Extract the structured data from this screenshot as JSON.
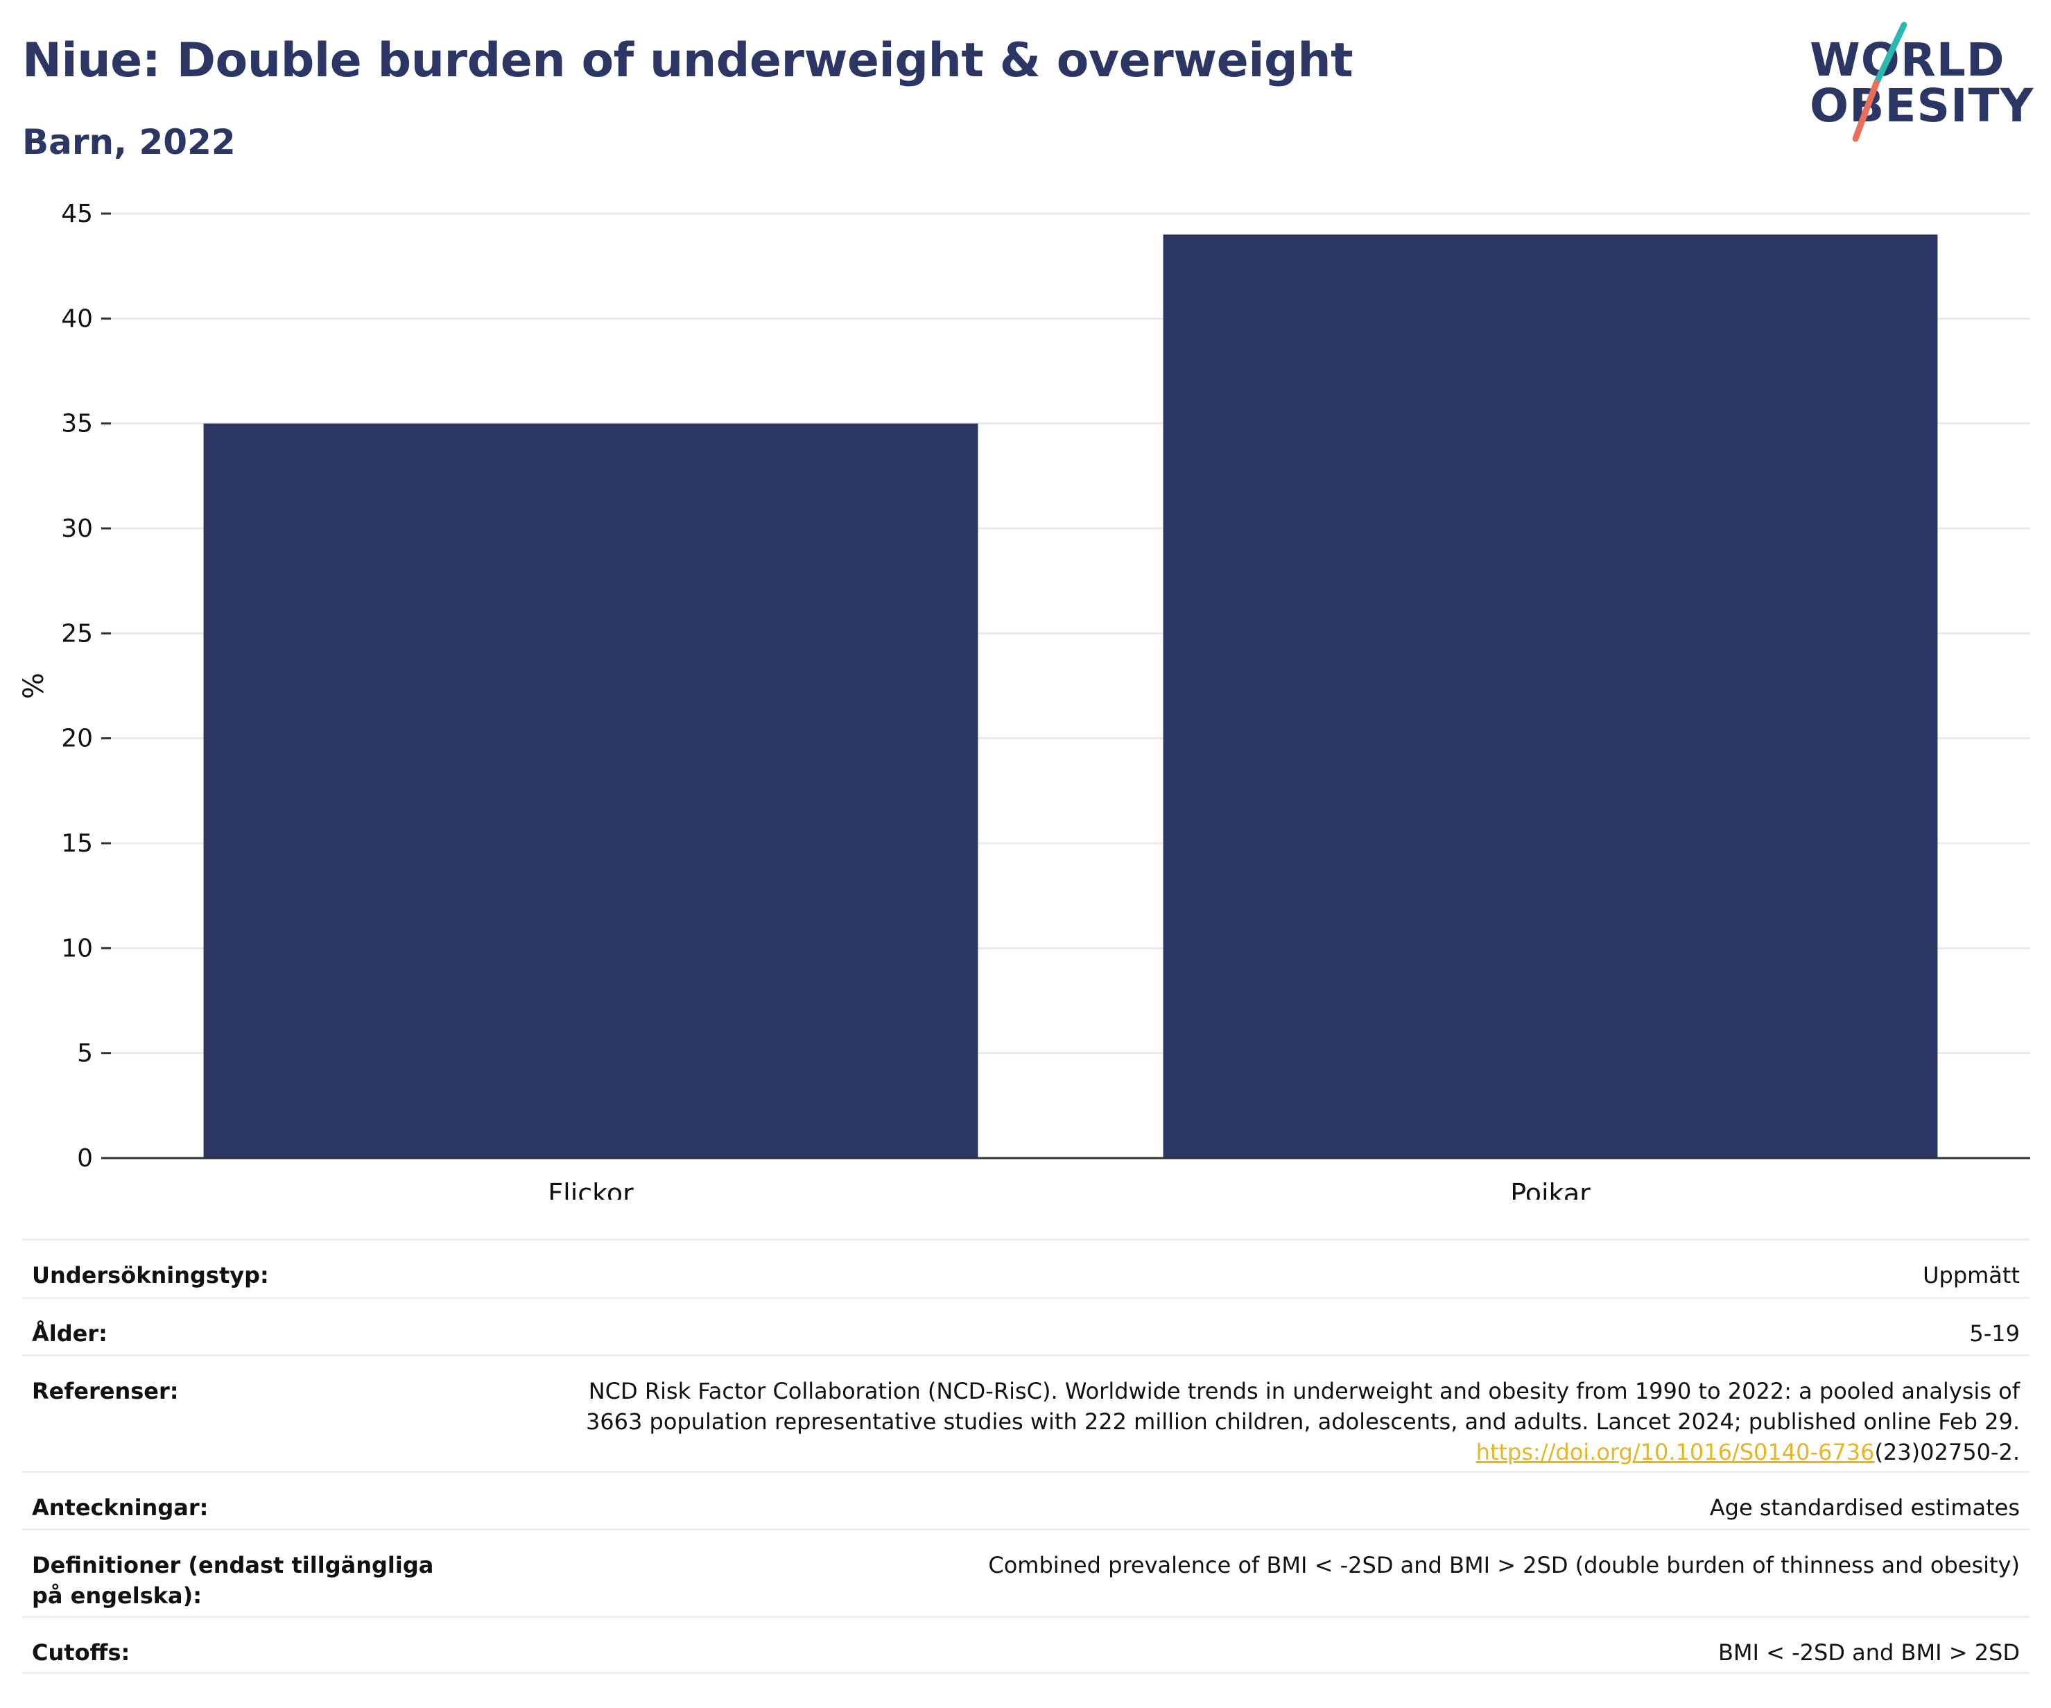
{
  "header": {
    "title": "Niue: Double burden of underweight & overweight",
    "subtitle": "Barn, 2022"
  },
  "logo": {
    "line1": "WORLD",
    "line2": "OBESITY",
    "accent_teal": "#2ab9b0",
    "accent_coral": "#e8705a"
  },
  "chart_data": {
    "type": "bar",
    "categories": [
      "Flickor",
      "Pojkar"
    ],
    "values": [
      35,
      44
    ],
    "ylabel": "%",
    "xlabel": "",
    "ylim": [
      0,
      45
    ],
    "yticks": [
      0,
      5,
      10,
      15,
      20,
      25,
      30,
      35,
      40,
      45
    ],
    "bar_color": "#2b3664",
    "grid": true
  },
  "meta": {
    "survey_type": {
      "label": "Undersökningstyp:",
      "value": "Uppmätt"
    },
    "age": {
      "label": "Ålder:",
      "value": "5-19"
    },
    "references": {
      "label": "Referenser:",
      "line1": "NCD Risk Factor Collaboration (NCD-RisC). Worldwide trends in underweight and obesity from 1990 to 2022: a pooled analysis of",
      "line2": "3663 population representative studies with 222 million children, adolescents, and adults. Lancet 2024; published online Feb 29.",
      "link": "https://doi.org/10.1016/S0140-6736",
      "link_suffix": "(23)02750-2."
    },
    "notes": {
      "label": "Anteckningar:",
      "value": "Age standardised estimates"
    },
    "definitions": {
      "label": "Definitioner (endast tillgängliga på engelska):",
      "value": "Combined prevalence of BMI < -2SD and BMI > 2SD (double burden of thinness and obesity)"
    },
    "cutoffs": {
      "label": "Cutoffs:",
      "value": "BMI < -2SD and BMI > 2SD"
    }
  }
}
